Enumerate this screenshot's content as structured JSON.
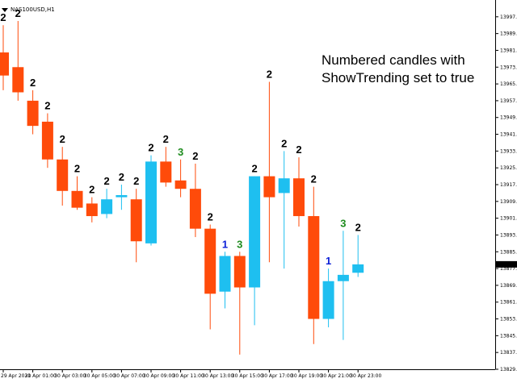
{
  "window": {
    "symbol_label": "NAS100USD,H1"
  },
  "annotation": {
    "text": "Numbered candles with ShowTrending set to true"
  },
  "colors": {
    "bull": "#1ebff0",
    "bear": "#ff4b0a",
    "num_black": "#000000",
    "num_blue": "#0a1ed7",
    "num_green": "#1e8c1e"
  },
  "chart_data": {
    "type": "candlestick",
    "price_axis": {
      "min": 13829,
      "max": 14005,
      "ticks": [
        13997.0,
        13989.0,
        13981.0,
        13973.0,
        13965.0,
        13957.0,
        13949.0,
        13941.0,
        13933.0,
        13925.0,
        13917.0,
        13909.0,
        13901.0,
        13893.0,
        13885.0,
        13877.0,
        13869.0,
        13861.0,
        13853.0,
        13845.0,
        13837.0,
        13829.0
      ],
      "current_price": "13879.0"
    },
    "time_labels": [
      "29 Apr 2021",
      "30 Apr 01:00",
      "30 Apr 03:00",
      "30 Apr 05:00",
      "30 Apr 07:00",
      "30 Apr 09:00",
      "30 Apr 11:00",
      "30 Apr 13:00",
      "30 Apr 15:00",
      "30 Apr 17:00",
      "30 Apr 19:00",
      "30 Apr 21:00",
      "30 Apr 23:00"
    ],
    "candles": [
      {
        "o": 13980,
        "h": 13993,
        "l": 13962,
        "c": 13969,
        "n": "2",
        "nc": "black"
      },
      {
        "o": 13973,
        "h": 13995,
        "l": 13957,
        "c": 13961,
        "n": "2",
        "nc": "black"
      },
      {
        "o": 13957,
        "h": 13962,
        "l": 13941,
        "c": 13945,
        "n": "2",
        "nc": "black"
      },
      {
        "o": 13947,
        "h": 13951,
        "l": 13925,
        "c": 13929,
        "n": "2",
        "nc": "black"
      },
      {
        "o": 13929,
        "h": 13935,
        "l": 13907,
        "c": 13914,
        "n": "2",
        "nc": "black"
      },
      {
        "o": 13914,
        "h": 13921,
        "l": 13905,
        "c": 13906,
        "n": "2",
        "nc": "black"
      },
      {
        "o": 13908,
        "h": 13911,
        "l": 13899,
        "c": 13902,
        "n": "2",
        "nc": "black"
      },
      {
        "o": 13903,
        "h": 13915,
        "l": 13901,
        "c": 13910,
        "n": "2",
        "nc": "black"
      },
      {
        "o": 13911,
        "h": 13917,
        "l": 13905,
        "c": 13912,
        "n": "2",
        "nc": "black"
      },
      {
        "o": 13910,
        "h": 13915,
        "l": 13880,
        "c": 13890,
        "n": "2",
        "nc": "black"
      },
      {
        "o": 13889,
        "h": 13931,
        "l": 13888,
        "c": 13928,
        "n": "2",
        "nc": "black"
      },
      {
        "o": 13928,
        "h": 13935,
        "l": 13916,
        "c": 13918,
        "n": "2",
        "nc": "black"
      },
      {
        "o": 13919,
        "h": 13929,
        "l": 13911,
        "c": 13915,
        "n": "3",
        "nc": "green"
      },
      {
        "o": 13915,
        "h": 13927,
        "l": 13892,
        "c": 13896,
        "n": "2",
        "nc": "black"
      },
      {
        "o": 13896,
        "h": 13898,
        "l": 13848,
        "c": 13865,
        "n": "2",
        "nc": "black"
      },
      {
        "o": 13866,
        "h": 13885,
        "l": 13858,
        "c": 13883,
        "n": "1",
        "nc": "blue"
      },
      {
        "o": 13883,
        "h": 13885,
        "l": 13836,
        "c": 13868,
        "n": "3",
        "nc": "green"
      },
      {
        "o": 13868,
        "h": 13921,
        "l": 13850,
        "c": 13921,
        "n": "2",
        "nc": "black"
      },
      {
        "o": 13921,
        "h": 13966,
        "l": 13880,
        "c": 13911,
        "n": "2",
        "nc": "black"
      },
      {
        "o": 13913,
        "h": 13933,
        "l": 13877,
        "c": 13920,
        "n": "2",
        "nc": "black"
      },
      {
        "o": 13920,
        "h": 13930,
        "l": 13897,
        "c": 13902,
        "n": "2",
        "nc": "black"
      },
      {
        "o": 13902,
        "h": 13916,
        "l": 13841,
        "c": 13853,
        "n": "2",
        "nc": "black"
      },
      {
        "o": 13853,
        "h": 13877,
        "l": 13849,
        "c": 13871,
        "n": "1",
        "nc": "blue"
      },
      {
        "o": 13871,
        "h": 13895,
        "l": 13843,
        "c": 13874,
        "n": "3",
        "nc": "green"
      },
      {
        "o": 13875,
        "h": 13893,
        "l": 13873,
        "c": 13879,
        "n": "2",
        "nc": "black"
      }
    ]
  }
}
